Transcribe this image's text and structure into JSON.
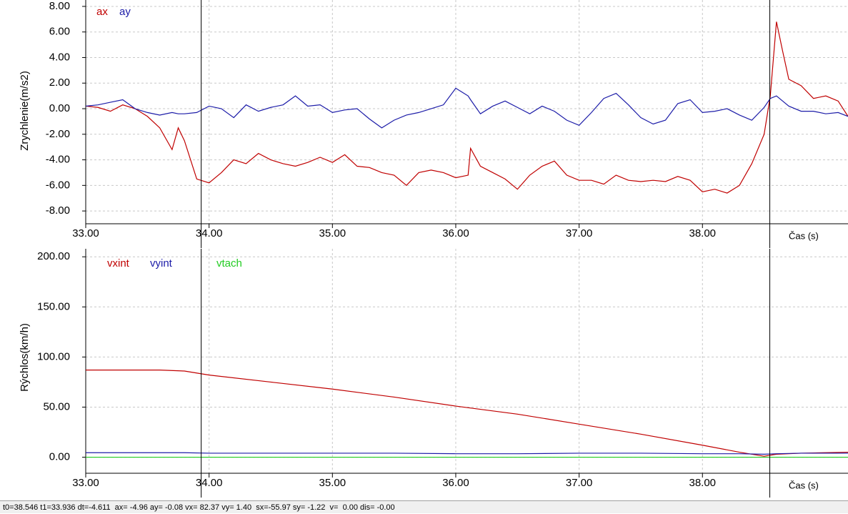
{
  "chart_data": [
    {
      "type": "line",
      "y_label": "Zrychlenie(m/s2)",
      "x_label": "Čas (s)",
      "grid": true,
      "cursors": [
        33.936,
        38.546
      ],
      "x": [
        33.0,
        33.1,
        33.2,
        33.3,
        33.4,
        33.5,
        33.6,
        33.7,
        33.75,
        33.8,
        33.9,
        34.0,
        34.1,
        34.2,
        34.3,
        34.4,
        34.5,
        34.6,
        34.7,
        34.8,
        34.9,
        35.0,
        35.1,
        35.2,
        35.3,
        35.4,
        35.5,
        35.6,
        35.7,
        35.8,
        35.9,
        36.0,
        36.1,
        36.12,
        36.2,
        36.3,
        36.4,
        36.5,
        36.6,
        36.7,
        36.8,
        36.9,
        37.0,
        37.1,
        37.2,
        37.3,
        37.4,
        37.5,
        37.6,
        37.7,
        37.8,
        37.9,
        38.0,
        38.1,
        38.2,
        38.3,
        38.4,
        38.5,
        38.55,
        38.6,
        38.65,
        38.7,
        38.8,
        38.9,
        39.0,
        39.1,
        39.18
      ],
      "series": [
        {
          "name": "ax",
          "color": "#c00000",
          "values": [
            0.2,
            0.1,
            -0.2,
            0.3,
            0.0,
            -0.6,
            -1.5,
            -3.2,
            -1.5,
            -2.5,
            -5.5,
            -5.8,
            -5.0,
            -4.0,
            -4.3,
            -3.5,
            -4.0,
            -4.3,
            -4.5,
            -4.2,
            -3.8,
            -4.2,
            -3.6,
            -4.5,
            -4.6,
            -5.0,
            -5.2,
            -6.0,
            -5.0,
            -4.8,
            -5.0,
            -5.4,
            -5.2,
            -3.1,
            -4.5,
            -5.0,
            -5.5,
            -6.3,
            -5.2,
            -4.5,
            -4.1,
            -5.2,
            -5.6,
            -5.6,
            -5.9,
            -5.2,
            -5.6,
            -5.7,
            -5.6,
            -5.7,
            -5.3,
            -5.6,
            -6.5,
            -6.3,
            -6.6,
            -6.0,
            -4.3,
            -2.0,
            1.0,
            6.8,
            4.5,
            2.3,
            1.8,
            0.8,
            1.0,
            0.6,
            -0.6
          ]
        },
        {
          "name": "ay",
          "color": "#1c1ca8",
          "values": [
            0.2,
            0.3,
            0.5,
            0.7,
            0.0,
            -0.3,
            -0.5,
            -0.3,
            -0.4,
            -0.4,
            -0.3,
            0.2,
            0.0,
            -0.7,
            0.3,
            -0.2,
            0.1,
            0.3,
            1.0,
            0.2,
            0.3,
            -0.3,
            -0.1,
            0.0,
            -0.8,
            -1.5,
            -0.9,
            -0.5,
            -0.3,
            0.0,
            0.3,
            1.6,
            1.0,
            0.7,
            -0.4,
            0.2,
            0.6,
            0.1,
            -0.4,
            0.2,
            -0.2,
            -0.9,
            -1.3,
            -0.3,
            0.8,
            1.2,
            0.3,
            -0.7,
            -1.2,
            -0.9,
            0.4,
            0.7,
            -0.3,
            -0.2,
            0.0,
            -0.5,
            -0.9,
            0.1,
            0.8,
            1.0,
            0.6,
            0.2,
            -0.2,
            -0.2,
            -0.4,
            -0.3,
            -0.6
          ]
        }
      ],
      "xlim": [
        33,
        39.18
      ],
      "xticks": [
        {
          "value": 33,
          "label": "33.00"
        },
        {
          "value": 34,
          "label": "34.00"
        },
        {
          "value": 35,
          "label": "35.00"
        },
        {
          "value": 36,
          "label": "36.00"
        },
        {
          "value": 37,
          "label": "37.00"
        },
        {
          "value": 38,
          "label": "38.00"
        }
      ],
      "ylim": [
        -9,
        8.5
      ],
      "yticks": [
        {
          "value": -8,
          "label": "-8.00"
        },
        {
          "value": -6,
          "label": "-6.00"
        },
        {
          "value": -4,
          "label": "-4.00"
        },
        {
          "value": -2,
          "label": "-2.00"
        },
        {
          "value": 0,
          "label": "0.00"
        },
        {
          "value": 2,
          "label": "2.00"
        },
        {
          "value": 4,
          "label": "4.00"
        },
        {
          "value": 6,
          "label": "6.00"
        },
        {
          "value": 8,
          "label": "8.00"
        }
      ]
    },
    {
      "type": "line",
      "y_label": "Rýchlos(km/h)",
      "x_label": "Čas (s)",
      "grid": true,
      "cursors": [
        33.936,
        38.546
      ],
      "x": [
        33.0,
        33.6,
        33.8,
        34.0,
        34.5,
        35.0,
        35.5,
        36.0,
        36.5,
        37.0,
        37.5,
        38.0,
        38.3,
        38.5,
        38.6,
        38.8,
        39.18
      ],
      "series": [
        {
          "name": "vxint",
          "color": "#c00000",
          "values": [
            87,
            87,
            86,
            82,
            75,
            68,
            60,
            51,
            43,
            33,
            23,
            12,
            5,
            1,
            3,
            4,
            5
          ]
        },
        {
          "name": "vyint",
          "color": "#1c1ca8",
          "values": [
            4.5,
            4.5,
            4.5,
            4,
            4,
            4,
            4,
            3.5,
            3.5,
            4,
            4,
            3.5,
            3.5,
            3,
            3.5,
            4,
            4
          ]
        },
        {
          "name": "vtach",
          "color": "#22cc22",
          "values": [
            0,
            0,
            0,
            0,
            0,
            0,
            0,
            0,
            0,
            0,
            0,
            0,
            0,
            0,
            0,
            0,
            0
          ]
        }
      ],
      "xlim": [
        33,
        39.18
      ],
      "xticks": [
        {
          "value": 33,
          "label": "33.00"
        },
        {
          "value": 34,
          "label": "34.00"
        },
        {
          "value": 35,
          "label": "35.00"
        },
        {
          "value": 36,
          "label": "36.00"
        },
        {
          "value": 37,
          "label": "37.00"
        },
        {
          "value": 38,
          "label": "38.00"
        }
      ],
      "ylim": [
        -16,
        208
      ],
      "yticks": [
        {
          "value": 0,
          "label": "0.00"
        },
        {
          "value": 50,
          "label": "50.00"
        },
        {
          "value": 100,
          "label": "100.00"
        },
        {
          "value": 150,
          "label": "150.00"
        },
        {
          "value": 200,
          "label": "200.00"
        }
      ]
    }
  ],
  "status_text": "t0=38.546 t1=33.936 dt=-4.611  ax= -4.96 ay= -0.08 vx= 82.37 vy= 1.40  sx=-55.97 sy= -1.22  v=  0.00 dis= -0.00"
}
